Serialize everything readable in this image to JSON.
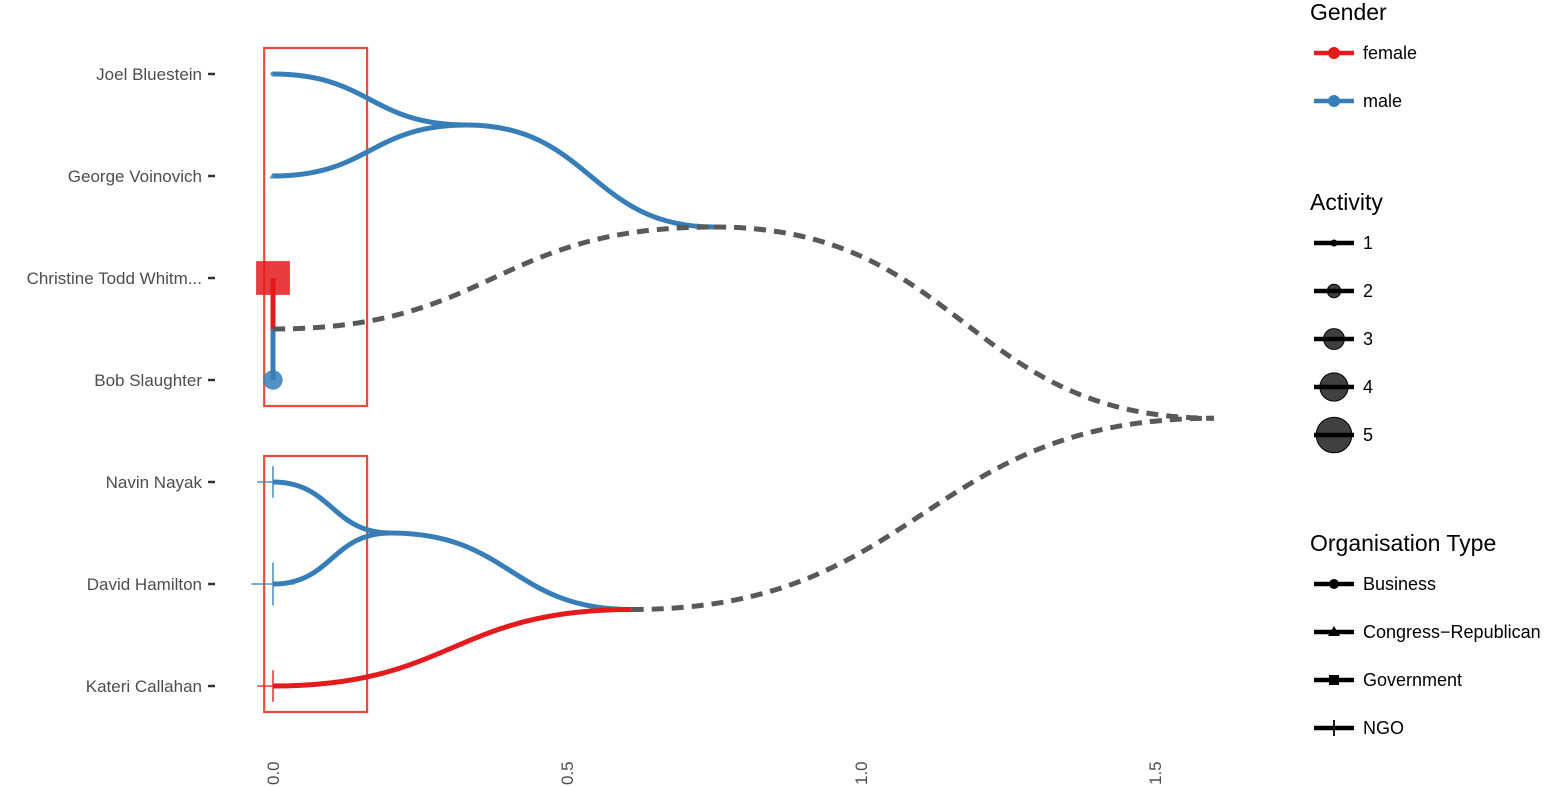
{
  "chart_data": {
    "type": "dendrogram",
    "x_axis": {
      "ticks": [
        0,
        0.5,
        1,
        1.5
      ],
      "tick_labels": [
        "0.0",
        "0.5",
        "1.0",
        "1.5"
      ],
      "range": [
        -0.02,
        1.62
      ]
    },
    "leaves": [
      {
        "label": "Joel Bluestein",
        "gender": "male",
        "activity": 1,
        "org_type": "Business"
      },
      {
        "label": "George Voinovich",
        "gender": "male",
        "activity": 1,
        "org_type": "Congress-Republican"
      },
      {
        "label": "Christine Todd Whitm...",
        "gender": "female",
        "activity": 5,
        "org_type": "Government"
      },
      {
        "label": "Bob Slaughter",
        "gender": "male",
        "activity": 3,
        "org_type": "Business"
      },
      {
        "label": "Navin Nayak",
        "gender": "male",
        "activity": 2,
        "org_type": "NGO"
      },
      {
        "label": "David Hamilton",
        "gender": "male",
        "activity": 3,
        "org_type": "NGO"
      },
      {
        "label": "Kateri Callahan",
        "gender": "female",
        "activity": 2,
        "org_type": "NGO"
      }
    ],
    "merges": [
      {
        "id": "m1",
        "children": [
          "Joel Bluestein",
          "George Voinovich"
        ],
        "height": 0.33,
        "gender": "male"
      },
      {
        "id": "m2",
        "children": [
          "Christine Todd Whitm...",
          "Bob Slaughter"
        ],
        "height": 0.0,
        "gender": "mixed"
      },
      {
        "id": "m3",
        "children": [
          "m1",
          "m2"
        ],
        "height": 0.75,
        "gender": "mixed"
      },
      {
        "id": "m4",
        "children": [
          "Navin Nayak",
          "David Hamilton"
        ],
        "height": 0.2,
        "gender": "male"
      },
      {
        "id": "m5",
        "children": [
          "m4",
          "Kateri Callahan"
        ],
        "height": 0.61,
        "gender": "mixed"
      },
      {
        "id": "m6",
        "children": [
          "m3",
          "m5"
        ],
        "height": 1.6,
        "gender": "mixed"
      }
    ],
    "cluster_boxes": [
      {
        "leaves": [
          "Joel Bluestein",
          "George Voinovich",
          "Christine Todd Whitm...",
          "Bob Slaughter"
        ],
        "x_range": [
          -0.015,
          0.16
        ]
      },
      {
        "leaves": [
          "Navin Nayak",
          "David Hamilton",
          "Kateri Callahan"
        ],
        "x_range": [
          -0.015,
          0.16
        ]
      }
    ],
    "colors": {
      "female": "#e41a1c",
      "male": "#377eb8",
      "mixed": "#595959",
      "box": "#e74c3c"
    },
    "legends": [
      {
        "title": "Gender",
        "kind": "gender",
        "entries": [
          {
            "label": "female",
            "color": "#e41a1c"
          },
          {
            "label": "male",
            "color": "#377eb8"
          }
        ]
      },
      {
        "title": "Activity",
        "kind": "size",
        "entries": [
          {
            "label": "1",
            "size": 1
          },
          {
            "label": "2",
            "size": 2
          },
          {
            "label": "3",
            "size": 3
          },
          {
            "label": "4",
            "size": 4
          },
          {
            "label": "5",
            "size": 5
          }
        ]
      },
      {
        "title": "Organisation Type",
        "kind": "shape",
        "entries": [
          {
            "label": "Business",
            "shape": "circle"
          },
          {
            "label": "Congress−Republican",
            "shape": "triangle"
          },
          {
            "label": "Government",
            "shape": "square"
          },
          {
            "label": "NGO",
            "shape": "plus"
          }
        ]
      }
    ]
  }
}
